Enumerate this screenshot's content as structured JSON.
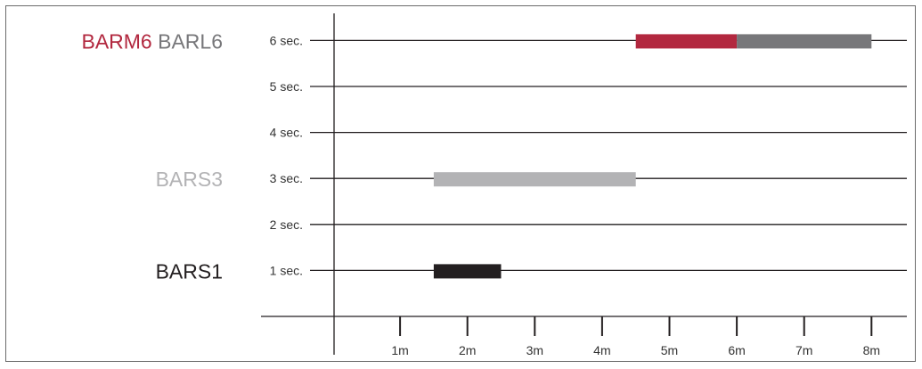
{
  "chart_data": {
    "type": "bar",
    "orientation": "horizontal-range",
    "title": "",
    "xlabel": "",
    "ylabel": "",
    "x_ticks": [
      "1m",
      "2m",
      "3m",
      "4m",
      "5m",
      "6m",
      "7m",
      "8m"
    ],
    "y_ticks": [
      "1 sec.",
      "2 sec.",
      "3 sec.",
      "4 sec.",
      "5 sec.",
      "6 sec."
    ],
    "xlim": [
      0,
      8.5
    ],
    "ylim": [
      0,
      6
    ],
    "grid": "horizontal",
    "series": [
      {
        "name": "BARS1",
        "y": 1,
        "x_start": 1.5,
        "x_end": 2.5,
        "color": "#231f20",
        "label_color": "#231f20"
      },
      {
        "name": "BARS3",
        "y": 3,
        "x_start": 1.5,
        "x_end": 4.5,
        "color": "#b3b3b5",
        "label_color": "#b3b3b5"
      },
      {
        "name": "BARM6",
        "y": 6,
        "x_start": 4.5,
        "x_end": 6.0,
        "color": "#b2283f",
        "label_color": "#b2283f"
      },
      {
        "name": "BARL6",
        "y": 6,
        "x_start": 6.0,
        "x_end": 8.0,
        "color": "#77777a",
        "label_color": "#77777a"
      }
    ]
  }
}
